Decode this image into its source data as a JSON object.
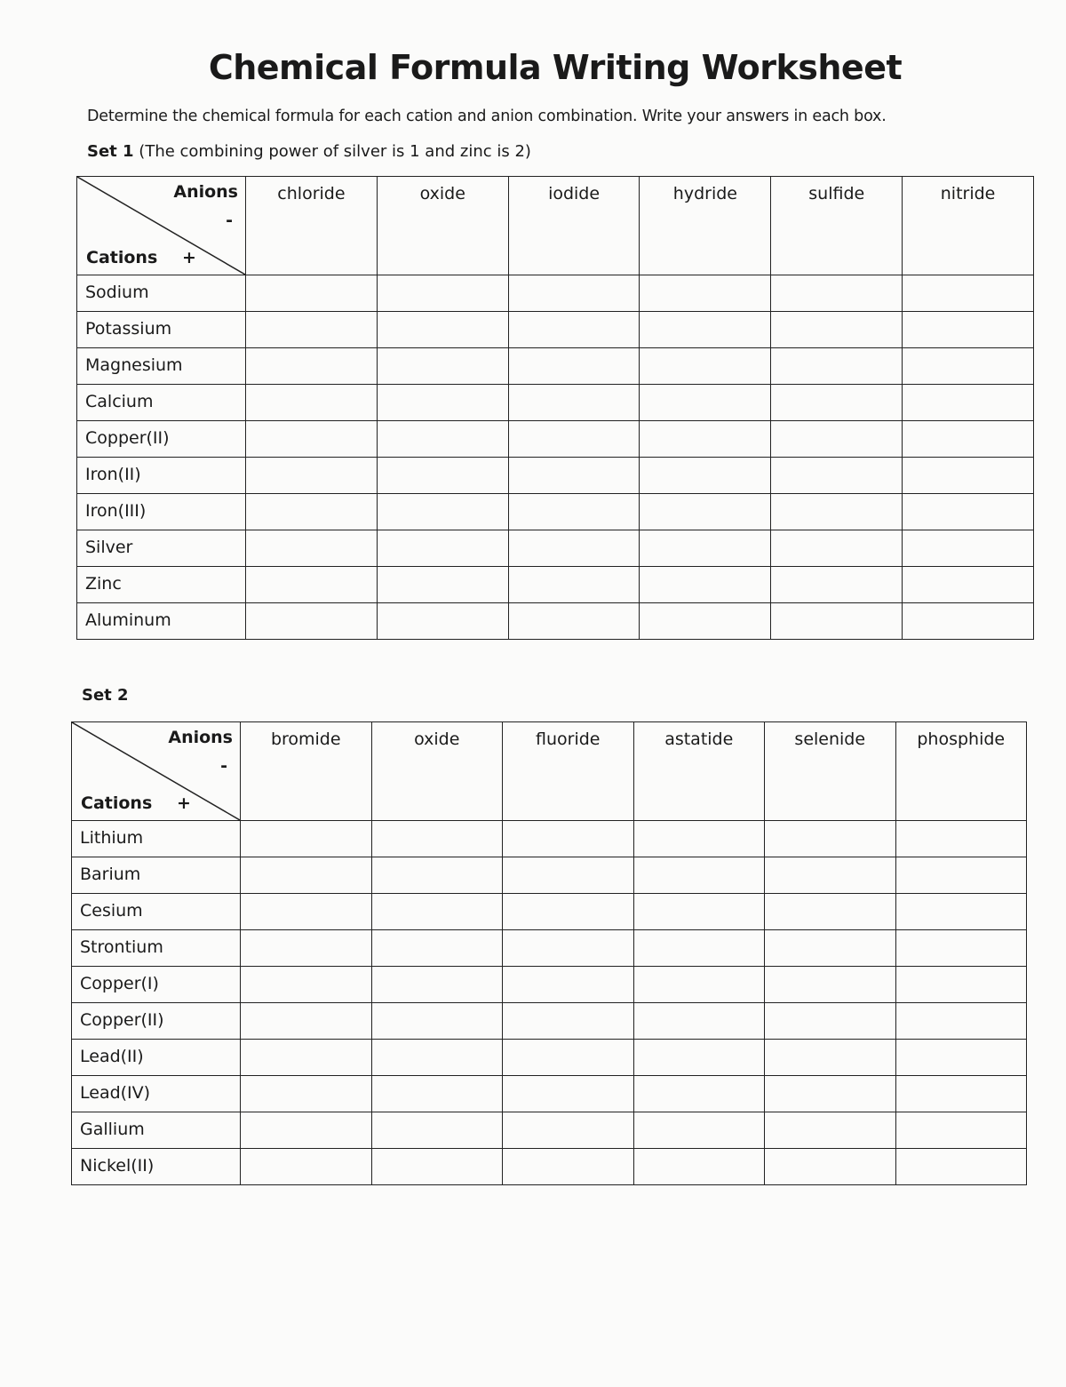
{
  "title": "Chemical Formula Writing Worksheet",
  "instructions": "Determine the chemical formula for each cation and anion combination. Write your answers in each box.",
  "sets": [
    {
      "label": "Set 1",
      "note": " (The combining power of silver is 1 and zinc is 2)",
      "corner": {
        "anions": "Anions",
        "minus": "-",
        "cations": "Cations",
        "plus": "+"
      },
      "anions": [
        "chloride",
        "oxide",
        "iodide",
        "hydride",
        "sulfide",
        "nitride"
      ],
      "cations": [
        "Sodium",
        "Potassium",
        "Magnesium",
        "Calcium",
        "Copper(II)",
        "Iron(II)",
        "Iron(III)",
        "Silver",
        "Zinc",
        "Aluminum"
      ]
    },
    {
      "label": "Set 2",
      "note": "",
      "corner": {
        "anions": "Anions",
        "minus": "-",
        "cations": "Cations",
        "plus": "+"
      },
      "anions": [
        "bromide",
        "oxide",
        "fluoride",
        "astatide",
        "selenide",
        "phosphide"
      ],
      "cations": [
        "Lithium",
        "Barium",
        "Cesium",
        "Strontium",
        "Copper(I)",
        "Copper(II)",
        "Lead(II)",
        "Lead(IV)",
        "Gallium",
        "Nickel(II)"
      ]
    }
  ]
}
